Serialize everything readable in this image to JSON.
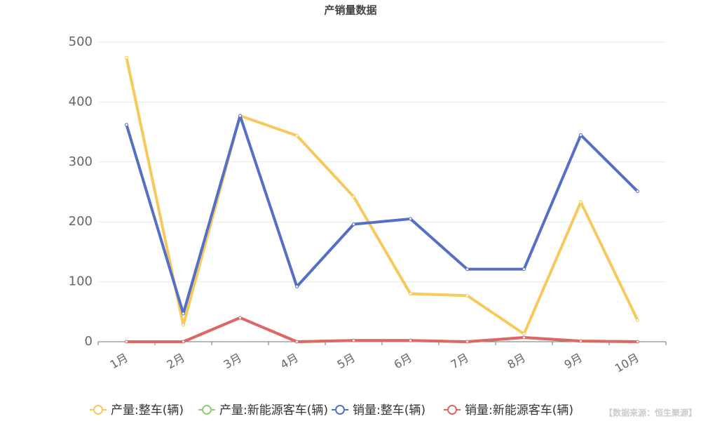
{
  "chart_data": {
    "type": "line",
    "title": "产销量数据",
    "categories": [
      "1月",
      "2月",
      "3月",
      "4月",
      "5月",
      "6月",
      "7月",
      "8月",
      "9月",
      "10月"
    ],
    "series": [
      {
        "name": "产量:整车(辆)",
        "color": "#f7c95a",
        "values": [
          474,
          28,
          377,
          344,
          242,
          80,
          77,
          13,
          233,
          36
        ]
      },
      {
        "name": "产量:新能源客车(辆)",
        "color": "#91cc75",
        "values": [
          0,
          0,
          40,
          0,
          2,
          2,
          0,
          7,
          1,
          0
        ]
      },
      {
        "name": "销量:整车(辆)",
        "color": "#5470c6",
        "values": [
          362,
          47,
          377,
          92,
          196,
          205,
          121,
          121,
          345,
          251
        ]
      },
      {
        "name": "销量:新能源客车(辆)",
        "color": "#e06666",
        "values": [
          0,
          0,
          40,
          0,
          2,
          2,
          0,
          7,
          1,
          0
        ]
      }
    ],
    "ylim": [
      0,
      500
    ],
    "yticks": [
      0,
      100,
      200,
      300,
      400,
      500
    ],
    "grid": true,
    "source": "【数据来源：恒生聚源】"
  }
}
